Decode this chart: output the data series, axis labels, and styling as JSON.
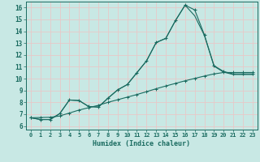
{
  "background_color": "#c8e8e4",
  "grid_color": "#e8c8c8",
  "line_color": "#1a6b60",
  "xlabel": "Humidex (Indice chaleur)",
  "xlim": [
    -0.5,
    23.5
  ],
  "ylim": [
    5.7,
    16.5
  ],
  "x_ticks": [
    0,
    1,
    2,
    3,
    4,
    5,
    6,
    7,
    8,
    9,
    10,
    11,
    12,
    13,
    14,
    15,
    16,
    17,
    18,
    19,
    20,
    21,
    22,
    23
  ],
  "y_ticks": [
    6,
    7,
    8,
    9,
    10,
    11,
    12,
    13,
    14,
    15,
    16
  ],
  "line1_x": [
    0,
    1,
    2,
    3,
    4,
    5,
    6,
    7,
    8,
    9,
    10,
    11,
    12,
    13,
    14,
    15,
    16,
    17,
    18,
    19,
    20,
    21,
    22,
    23
  ],
  "line1_y": [
    6.7,
    6.55,
    6.55,
    7.05,
    8.2,
    8.15,
    7.65,
    7.6,
    8.35,
    9.05,
    9.5,
    10.5,
    11.5,
    13.05,
    13.4,
    14.9,
    16.2,
    15.8,
    13.7,
    11.1,
    10.6,
    10.4,
    10.4,
    10.4
  ],
  "line2_x": [
    0,
    1,
    2,
    3,
    4,
    5,
    6,
    7,
    8,
    9,
    10,
    11,
    12,
    13,
    14,
    15,
    16,
    17,
    18,
    19,
    20,
    21,
    22,
    23
  ],
  "line2_y": [
    6.7,
    6.55,
    6.55,
    7.05,
    8.2,
    8.15,
    7.65,
    7.6,
    8.35,
    9.05,
    9.5,
    10.5,
    11.5,
    13.05,
    13.4,
    14.9,
    16.2,
    15.3,
    13.65,
    11.05,
    10.55,
    10.35,
    10.35,
    10.35
  ],
  "line3_x": [
    0,
    1,
    2,
    3,
    4,
    5,
    6,
    7,
    8,
    9,
    10,
    11,
    12,
    13,
    14,
    15,
    16,
    17,
    18,
    19,
    20,
    21,
    22,
    23
  ],
  "line3_y": [
    6.7,
    6.72,
    6.74,
    6.85,
    7.1,
    7.35,
    7.55,
    7.75,
    8.0,
    8.22,
    8.44,
    8.66,
    8.9,
    9.15,
    9.38,
    9.6,
    9.82,
    10.02,
    10.22,
    10.4,
    10.52,
    10.52,
    10.52,
    10.52
  ]
}
